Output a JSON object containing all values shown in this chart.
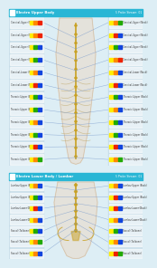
{
  "panel1_title": "Electro Upper Body",
  "panel2_title": "Electro Lower Body / Lumbar",
  "right_label": "5 Probe Stream: 01",
  "bg_color": "#ddeef5",
  "header_color": "#29b6d5",
  "body_bg_color": "#e8f0f5",
  "label_panel_color": "#c5dce8",
  "row_bg_color": "#dce8f0",
  "line_color": "#7799cc",
  "spine_color": "#c8a020",
  "rib_color": "#c0a868",
  "body_fill_color": "#e8ddd0",
  "body_outline_color": "#d0c0a8",
  "left_labels_upper": [
    "Cervical-Upper (Neck)",
    "Cervical-Upper (Neck)",
    "Cervical-Upper (Neck)",
    "Cervical-Upper (Neck)",
    "Cervical-Lower (Neck)",
    "Cervical-Lower (Neck)",
    "Thoracic-Upper (Back)",
    "Thoracic-Upper (Back)",
    "Thoracic-Upper (Back)",
    "Thoracic-Upper (Back)",
    "Thoracic-Upper (Back)",
    "Thoracic-Upper (Back)"
  ],
  "right_labels_upper": [
    "Cervical-Upper (Neck)",
    "Cervical-Upper (Neck)",
    "Cervical-Upper (Neck)",
    "Cervical-Upper (Neck)",
    "Cervical-Lower (Neck)",
    "Cervical-Lower (Neck)",
    "Thoracic-Upper (Back)",
    "Thoracic-Upper (Back)",
    "Thoracic-Upper (Back)",
    "Thoracic-Upper (Back)",
    "Thoracic-Upper (Back)",
    "Thoracic-Upper (Back)"
  ],
  "left_colors_upper": [
    [
      "#ffee00",
      "#ff8800",
      "#ee2200"
    ],
    [
      "#ffee00",
      "#ff8800",
      "#ee2200"
    ],
    [
      "#ffee00",
      "#22aa00",
      "#1144dd"
    ],
    [
      "#ffee00",
      "#22aa00",
      "#1144dd"
    ],
    [
      "#ffee00",
      "#ff8800",
      "#1144dd"
    ],
    [
      "#ffee00",
      "#ee2200",
      "#1144dd"
    ],
    [
      "#ffee00",
      "#22aa00",
      "#1144dd"
    ],
    [
      "#ffee00",
      "#22aa00",
      "#1144dd"
    ],
    [
      "#ffee00",
      "#ff8800",
      "#1144dd"
    ],
    [
      "#ffee00",
      "#22aa00",
      "#1144dd"
    ],
    [
      "#ffee00",
      "#ee2200",
      "#1144dd"
    ],
    [
      "#ffee00",
      "#ff8800",
      "#22aa00"
    ]
  ],
  "right_colors_upper": [
    [
      "#ffee00",
      "#ff8800",
      "#22aa00"
    ],
    [
      "#ffee00",
      "#ee2200",
      "#1144dd"
    ],
    [
      "#ffee00",
      "#22aa00",
      "#1144dd"
    ],
    [
      "#ffee00",
      "#ff8800",
      "#ee2200"
    ],
    [
      "#ffee00",
      "#ff8800",
      "#1144dd"
    ],
    [
      "#ffee00",
      "#ee2200",
      "#1144dd"
    ],
    [
      "#ffee00",
      "#22aa00",
      "#1144dd"
    ],
    [
      "#ffee00",
      "#ff8800",
      "#1144dd"
    ],
    [
      "#ffee00",
      "#22aa00",
      "#1144dd"
    ],
    [
      "#ffee00",
      "#22aa00",
      "#1144dd"
    ],
    [
      "#ffee00",
      "#ee2200",
      "#1144dd"
    ],
    [
      "#ffee00",
      "#ff8800",
      "#22aa00"
    ]
  ],
  "left_labels_lower": [
    "Lumbar-Upper (Back)",
    "Lumbar-Upper (Back)",
    "Lumbar-Lower (Back)",
    "Lumbar-Lower (Back)",
    "Sacral (Tailbone)",
    "Sacral (Tailbone)",
    "Sacral (Tailbone)"
  ],
  "right_labels_lower": [
    "Lumbar-Upper (Back)",
    "Lumbar-Upper (Back)",
    "Lumbar-Lower (Back)",
    "Lumbar-Lower (Back)",
    "Sacral (Tailbone)",
    "Sacral (Tailbone)",
    "Sacral (Tailbone)"
  ],
  "left_colors_lower": [
    [
      "#ffee00",
      "#ff8800",
      "#1144dd"
    ],
    [
      "#ffee00",
      "#22aa00",
      "#1144dd"
    ],
    [
      "#ffee00",
      "#ee2200",
      "#1144dd"
    ],
    [
      "#ffee00",
      "#ff8800",
      "#1144dd"
    ],
    [
      "#ffee00",
      "#22aa00",
      "#1144dd"
    ],
    [
      "#ffee00",
      "#ff8800",
      "#22aa00"
    ],
    [
      "#ffee00",
      "#ff8800",
      "#1144dd"
    ]
  ],
  "right_colors_lower": [
    [
      "#ffee00",
      "#ff8800",
      "#1144dd"
    ],
    [
      "#ffee00",
      "#ee2200",
      "#1144dd"
    ],
    [
      "#ffee00",
      "#ee2200",
      "#1144dd"
    ],
    [
      "#ffee00",
      "#ff8800",
      "#1144dd"
    ],
    [
      "#ffee00",
      "#22aa00",
      "#1144dd"
    ],
    [
      "#ffee00",
      "#ff8800",
      "#1144dd"
    ],
    [
      "#ffee00",
      "#ee2200",
      "#22aa00"
    ]
  ]
}
